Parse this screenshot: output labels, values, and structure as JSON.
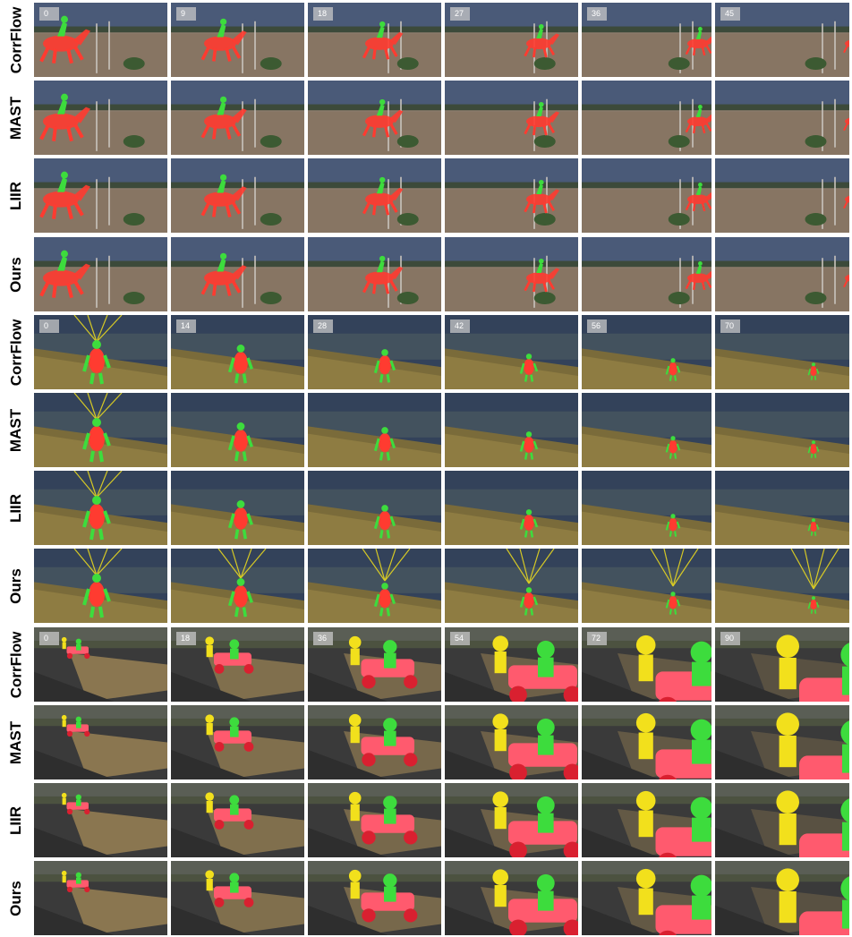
{
  "figure": {
    "sequences": [
      {
        "scene": "horse-jump",
        "frames": [
          "0",
          "9",
          "18",
          "27",
          "36",
          "45"
        ],
        "methods": [
          "CorrFlow",
          "MAST",
          "LIIR",
          "Ours"
        ]
      },
      {
        "scene": "paraglide",
        "frames": [
          "0",
          "14",
          "28",
          "42",
          "56",
          "70"
        ],
        "methods": [
          "CorrFlow",
          "MAST",
          "LIIR",
          "Ours"
        ]
      },
      {
        "scene": "soapbox",
        "frames": [
          "0",
          "18",
          "36",
          "54",
          "72",
          "90"
        ],
        "methods": [
          "CorrFlow",
          "MAST",
          "LIIR",
          "Ours"
        ]
      }
    ]
  },
  "colors": {
    "mask_red": "#ff3b30",
    "mask_green": "#3ddc3d",
    "mask_yellow": "#f2e01c",
    "badge_bg": "#c8c8c8"
  }
}
